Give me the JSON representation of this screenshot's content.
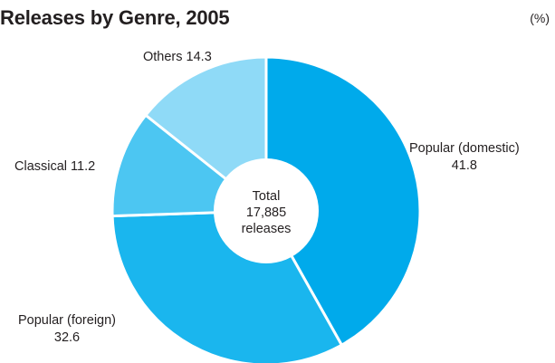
{
  "unit_note": "(%)",
  "chart_data": {
    "type": "pie",
    "title": "Releases by Genre, 2005",
    "center_label": {
      "line1": "Total",
      "line2": "17,885",
      "line3": "releases"
    },
    "slices": [
      {
        "label": "Popular (domestic)",
        "value": 41.8,
        "color": "#00aaeb"
      },
      {
        "label": "Popular (foreign)",
        "value": 32.6,
        "color": "#1ab6ee"
      },
      {
        "label": "Classical",
        "value": 11.2,
        "color": "#4cc6f2"
      },
      {
        "label": "Others",
        "value": 14.3,
        "color": "#8fdaf7"
      }
    ]
  }
}
